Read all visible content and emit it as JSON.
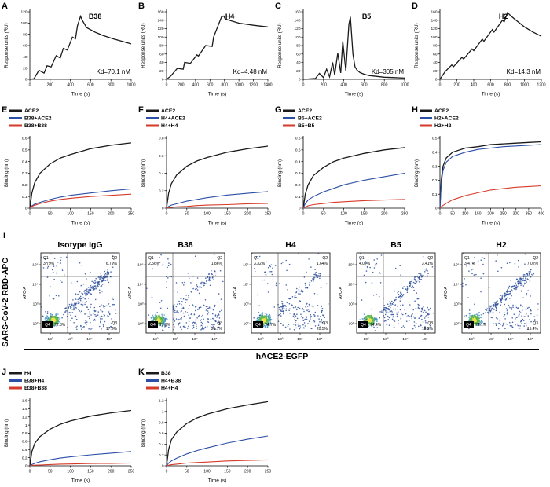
{
  "labels": {
    "flow_letter": "I",
    "flow_ylabel": "SARS-CoV-2 RBD-APC",
    "flow_xlabel": "hACE2-EGFP"
  },
  "chart_data": [
    {
      "panel": "A",
      "type": "line",
      "title": "B38",
      "annotation": "Kd=70.1 nM",
      "xlabel": "Time (s)",
      "ylabel": "Response units (RU)",
      "xlim": [
        0,
        1000
      ],
      "ylim": [
        0,
        120
      ],
      "xticks": [
        0,
        200,
        400,
        600,
        800,
        1000
      ],
      "yticks": [
        0,
        20,
        40,
        60,
        80,
        100,
        120
      ],
      "series": [
        {
          "name": "B38",
          "color": "#1a1a1a",
          "x": [
            0,
            40,
            90,
            140,
            170,
            210,
            260,
            300,
            330,
            370,
            420,
            450,
            470,
            500,
            520,
            560,
            640,
            720,
            820,
            920,
            1000
          ],
          "y": [
            0,
            1,
            16,
            11,
            24,
            22,
            42,
            38,
            55,
            52,
            75,
            72,
            95,
            112,
            104,
            92,
            84,
            78,
            72,
            67,
            63
          ]
        }
      ]
    },
    {
      "panel": "B",
      "type": "line",
      "title": "H4",
      "annotation": "Kd=4.48 nM",
      "xlabel": "Time (s)",
      "ylabel": "Response units (RU)",
      "xlim": [
        0,
        1400
      ],
      "ylim": [
        0,
        160
      ],
      "xticks": [
        0,
        200,
        400,
        600,
        800,
        1000,
        1200,
        1400
      ],
      "yticks": [
        0,
        20,
        40,
        60,
        80,
        100,
        120,
        140,
        160
      ],
      "series": [
        {
          "name": "H4",
          "color": "#1a1a1a",
          "x": [
            0,
            60,
            150,
            230,
            250,
            330,
            420,
            440,
            540,
            630,
            650,
            760,
            790,
            810,
            900,
            1000,
            1200,
            1400
          ],
          "y": [
            0,
            8,
            26,
            24,
            40,
            38,
            58,
            55,
            80,
            78,
            100,
            148,
            150,
            143,
            138,
            133,
            128,
            124
          ]
        }
      ]
    },
    {
      "panel": "C",
      "type": "line",
      "title": "B5",
      "annotation": "Kd=305 nM",
      "xlabel": "Time (s)",
      "ylabel": "Response units (RU)",
      "xlim": [
        0,
        1000
      ],
      "ylim": [
        0,
        160
      ],
      "xticks": [
        0,
        200,
        400,
        600,
        800,
        1000
      ],
      "yticks": [
        0,
        20,
        40,
        60,
        80,
        100,
        120,
        140,
        160
      ],
      "series": [
        {
          "name": "B5",
          "color": "#1a1a1a",
          "x": [
            0,
            120,
            160,
            200,
            230,
            260,
            290,
            310,
            340,
            370,
            390,
            420,
            450,
            465,
            490,
            510,
            530,
            560,
            600,
            650,
            720,
            800,
            900,
            1000
          ],
          "y": [
            0,
            2,
            14,
            4,
            24,
            6,
            40,
            10,
            62,
            15,
            90,
            20,
            130,
            148,
            60,
            30,
            22,
            16,
            12,
            9,
            7,
            5,
            4,
            3
          ]
        }
      ]
    },
    {
      "panel": "D",
      "type": "line",
      "title": "H2",
      "annotation": "Kd=14.3 nM",
      "xlabel": "Time (s)",
      "ylabel": "Response units (RU)",
      "xlim": [
        0,
        1200
      ],
      "ylim": [
        0,
        160
      ],
      "xticks": [
        0,
        200,
        400,
        600,
        800,
        1000,
        1200
      ],
      "yticks": [
        0,
        20,
        40,
        60,
        80,
        100,
        120,
        140,
        160
      ],
      "series": [
        {
          "name": "H2",
          "color": "#1a1a1a",
          "x": [
            0,
            60,
            140,
            160,
            260,
            280,
            380,
            400,
            500,
            520,
            620,
            640,
            740,
            760,
            800,
            840,
            900,
            1000,
            1100,
            1200
          ],
          "y": [
            0,
            18,
            34,
            30,
            52,
            48,
            72,
            68,
            95,
            90,
            118,
            112,
            140,
            136,
            158,
            150,
            140,
            124,
            112,
            102
          ]
        }
      ]
    },
    {
      "panel": "E",
      "type": "line",
      "xlabel": "Time (s)",
      "ylabel": "Binding (nm)",
      "xlim": [
        0,
        250
      ],
      "ylim": [
        0,
        0.6
      ],
      "xticks": [
        0,
        50,
        100,
        150,
        200,
        250
      ],
      "yticks": [
        0,
        0.1,
        0.2,
        0.3,
        0.4,
        0.5,
        0.6
      ],
      "series": [
        {
          "name": "ACE2",
          "color": "#1a1a1a",
          "x": [
            0,
            5,
            12,
            25,
            50,
            75,
            100,
            150,
            200,
            250
          ],
          "y": [
            0,
            0.13,
            0.22,
            0.3,
            0.38,
            0.43,
            0.46,
            0.51,
            0.54,
            0.56
          ]
        },
        {
          "name": "B38+ACE2",
          "color": "#2b4ea6",
          "x": [
            0,
            5,
            12,
            25,
            50,
            75,
            100,
            150,
            200,
            250
          ],
          "y": [
            0,
            0.02,
            0.035,
            0.05,
            0.075,
            0.095,
            0.11,
            0.13,
            0.15,
            0.165
          ]
        },
        {
          "name": "B38+B38",
          "color": "#d63a28",
          "x": [
            0,
            5,
            12,
            25,
            50,
            75,
            100,
            150,
            200,
            250
          ],
          "y": [
            0,
            0.015,
            0.025,
            0.04,
            0.06,
            0.075,
            0.085,
            0.1,
            0.11,
            0.12
          ]
        }
      ]
    },
    {
      "panel": "F",
      "type": "line",
      "xlabel": "Time (s)",
      "ylabel": "Binding (nm)",
      "xlim": [
        0,
        250
      ],
      "ylim": [
        0,
        0.8
      ],
      "xticks": [
        0,
        50,
        100,
        150,
        200,
        250
      ],
      "yticks": [
        0,
        0.2,
        0.4,
        0.6,
        0.8
      ],
      "series": [
        {
          "name": "ACE2",
          "color": "#1a1a1a",
          "x": [
            0,
            5,
            12,
            25,
            50,
            75,
            100,
            150,
            200,
            250
          ],
          "y": [
            0,
            0.17,
            0.28,
            0.38,
            0.48,
            0.54,
            0.58,
            0.64,
            0.68,
            0.71
          ]
        },
        {
          "name": "H4+ACE2",
          "color": "#2b4ea6",
          "x": [
            0,
            5,
            12,
            25,
            50,
            75,
            100,
            150,
            200,
            250
          ],
          "y": [
            0,
            0.02,
            0.035,
            0.05,
            0.08,
            0.1,
            0.12,
            0.15,
            0.17,
            0.19
          ]
        },
        {
          "name": "H4+H4",
          "color": "#d63a28",
          "x": [
            0,
            5,
            12,
            25,
            50,
            75,
            100,
            150,
            200,
            250
          ],
          "y": [
            0,
            0.005,
            0.01,
            0.015,
            0.02,
            0.03,
            0.035,
            0.04,
            0.05,
            0.055
          ]
        }
      ]
    },
    {
      "panel": "G",
      "type": "line",
      "xlabel": "Time (s)",
      "ylabel": "Binding (nm)",
      "xlim": [
        0,
        250
      ],
      "ylim": [
        0,
        0.6
      ],
      "xticks": [
        0,
        50,
        100,
        150,
        200,
        250
      ],
      "yticks": [
        0,
        0.1,
        0.2,
        0.3,
        0.4,
        0.5,
        0.6
      ],
      "series": [
        {
          "name": "ACE2",
          "color": "#1a1a1a",
          "x": [
            0,
            5,
            12,
            25,
            50,
            75,
            100,
            150,
            200,
            250
          ],
          "y": [
            0,
            0.12,
            0.2,
            0.28,
            0.35,
            0.4,
            0.43,
            0.47,
            0.5,
            0.52
          ]
        },
        {
          "name": "B5+ACE2",
          "color": "#2b4ea6",
          "x": [
            0,
            5,
            12,
            25,
            50,
            75,
            100,
            150,
            200,
            250
          ],
          "y": [
            0,
            0.04,
            0.07,
            0.1,
            0.14,
            0.17,
            0.2,
            0.24,
            0.27,
            0.3
          ]
        },
        {
          "name": "B5+B5",
          "color": "#d63a28",
          "x": [
            0,
            5,
            12,
            25,
            50,
            75,
            100,
            150,
            200,
            250
          ],
          "y": [
            0,
            0.01,
            0.02,
            0.03,
            0.04,
            0.05,
            0.055,
            0.065,
            0.07,
            0.075
          ]
        }
      ]
    },
    {
      "panel": "H",
      "type": "line",
      "xlabel": "Time (s)",
      "ylabel": "Binding (nm)",
      "xlim": [
        0,
        400
      ],
      "ylim": [
        0,
        0.5
      ],
      "xticks": [
        0,
        50,
        100,
        150,
        200,
        250,
        300,
        350,
        400
      ],
      "yticks": [
        0,
        0.1,
        0.2,
        0.3,
        0.4,
        0.5
      ],
      "series": [
        {
          "name": "ACE2",
          "color": "#1a1a1a",
          "x": [
            0,
            5,
            12,
            25,
            50,
            100,
            150,
            200,
            250,
            300,
            350,
            400
          ],
          "y": [
            0,
            0.2,
            0.3,
            0.36,
            0.4,
            0.43,
            0.44,
            0.455,
            0.46,
            0.465,
            0.47,
            0.475
          ]
        },
        {
          "name": "H2+ACE2",
          "color": "#2b4ea6",
          "x": [
            0,
            5,
            12,
            25,
            50,
            100,
            150,
            200,
            250,
            300,
            350,
            400
          ],
          "y": [
            0,
            0.18,
            0.27,
            0.33,
            0.37,
            0.4,
            0.42,
            0.43,
            0.44,
            0.445,
            0.45,
            0.455
          ]
        },
        {
          "name": "H2+H2",
          "color": "#d63a28",
          "x": [
            0,
            5,
            12,
            25,
            50,
            100,
            150,
            200,
            250,
            300,
            350,
            400
          ],
          "y": [
            0,
            0.01,
            0.02,
            0.035,
            0.06,
            0.09,
            0.11,
            0.13,
            0.14,
            0.15,
            0.155,
            0.16
          ]
        }
      ]
    },
    {
      "type": "flow",
      "title": "Isotype IgG",
      "ylabel": "APC-A",
      "tick_labels": [
        "10²",
        "10³",
        "10⁴",
        "10⁵"
      ],
      "quadrants": {
        "q1": "3.79%",
        "q2": "6.79%",
        "q3": "17.2%",
        "q4": "72.3%"
      }
    },
    {
      "type": "flow",
      "title": "B38",
      "ylabel": "APC-A",
      "tick_labels": [
        "10²",
        "10³",
        "10⁴",
        "10⁵"
      ],
      "quadrants": {
        "q1": "2.56%",
        "q2": "1.86%",
        "q3": "21.7%",
        "q4": "73.9%"
      }
    },
    {
      "type": "flow",
      "title": "H4",
      "ylabel": "APC-A",
      "tick_labels": [
        "10²",
        "10³",
        "10⁴",
        "10⁵"
      ],
      "quadrants": {
        "q1": "3.32%",
        "q2": "1.64%",
        "q3": "20.5%",
        "q4": "74.7%"
      }
    },
    {
      "type": "flow",
      "title": "B5",
      "ylabel": "APC-A",
      "tick_labels": [
        "10²",
        "10³",
        "10⁴",
        "10⁵"
      ],
      "quadrants": {
        "q1": "4.07%",
        "q2": "3.41%",
        "q3": "18.2%",
        "q4": "74.4%"
      }
    },
    {
      "type": "flow",
      "title": "H2",
      "ylabel": "APC-A",
      "tick_labels": [
        "10²",
        "10³",
        "10⁴",
        "10⁵"
      ],
      "quadrants": {
        "q1": "3.47%",
        "q2": "7.02%",
        "q3": "15.4%",
        "q4": "74.1%"
      }
    },
    {
      "panel": "J",
      "type": "line",
      "xlabel": "Time (s)",
      "ylabel": "Binding (nm)",
      "xlim": [
        0,
        250
      ],
      "ylim": [
        0,
        1.6
      ],
      "xticks": [
        0,
        50,
        100,
        150,
        200,
        250
      ],
      "yticks": [
        0,
        0.2,
        0.4,
        0.6,
        0.8,
        1.0,
        1.2,
        1.4,
        1.6
      ],
      "series": [
        {
          "name": "H4",
          "color": "#1a1a1a",
          "x": [
            0,
            5,
            12,
            25,
            50,
            75,
            100,
            150,
            200,
            250
          ],
          "y": [
            0,
            0.35,
            0.55,
            0.72,
            0.9,
            1.02,
            1.1,
            1.22,
            1.3,
            1.36
          ]
        },
        {
          "name": "B38+H4",
          "color": "#2b4ea6",
          "x": [
            0,
            5,
            12,
            25,
            50,
            75,
            100,
            150,
            200,
            250
          ],
          "y": [
            0,
            0.03,
            0.06,
            0.1,
            0.15,
            0.19,
            0.22,
            0.27,
            0.31,
            0.35
          ]
        },
        {
          "name": "B38+B38",
          "color": "#d63a28",
          "x": [
            0,
            5,
            12,
            25,
            50,
            75,
            100,
            150,
            200,
            250
          ],
          "y": [
            0,
            0.01,
            0.015,
            0.02,
            0.03,
            0.04,
            0.045,
            0.055,
            0.06,
            0.07
          ]
        }
      ]
    },
    {
      "panel": "K",
      "type": "line",
      "xlabel": "Time (s)",
      "ylabel": "Binding (nm)",
      "xlim": [
        0,
        250
      ],
      "ylim": [
        0,
        1.2
      ],
      "xticks": [
        0,
        50,
        100,
        150,
        200,
        250
      ],
      "yticks": [
        0,
        0.2,
        0.4,
        0.6,
        0.8,
        1.0,
        1.2
      ],
      "series": [
        {
          "name": "B38",
          "color": "#1a1a1a",
          "x": [
            0,
            5,
            12,
            25,
            50,
            75,
            100,
            150,
            200,
            250
          ],
          "y": [
            0,
            0.3,
            0.48,
            0.62,
            0.78,
            0.88,
            0.95,
            1.05,
            1.12,
            1.18
          ]
        },
        {
          "name": "H4+B38",
          "color": "#2b4ea6",
          "x": [
            0,
            5,
            12,
            25,
            50,
            75,
            100,
            150,
            200,
            250
          ],
          "y": [
            0,
            0.05,
            0.09,
            0.14,
            0.22,
            0.28,
            0.33,
            0.42,
            0.49,
            0.55
          ]
        },
        {
          "name": "H4+H4",
          "color": "#d63a28",
          "x": [
            0,
            5,
            12,
            25,
            50,
            75,
            100,
            150,
            200,
            250
          ],
          "y": [
            0,
            0.01,
            0.02,
            0.03,
            0.05,
            0.06,
            0.07,
            0.09,
            0.1,
            0.11
          ]
        }
      ]
    }
  ]
}
